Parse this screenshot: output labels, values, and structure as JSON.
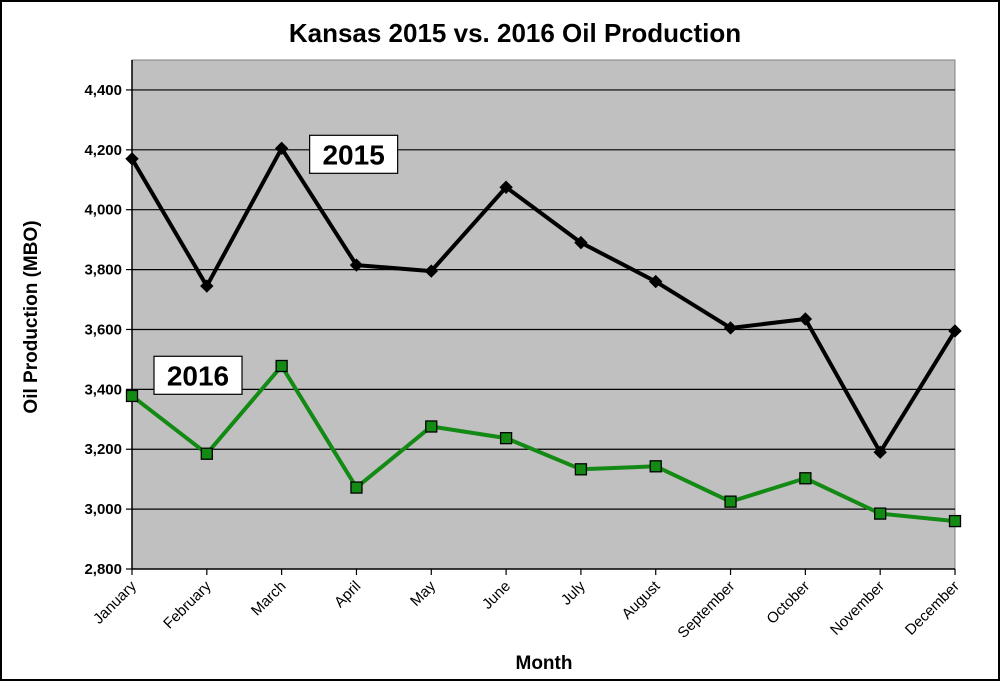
{
  "chart_data": {
    "type": "line",
    "title": "Kansas 2015 vs. 2016 Oil Production",
    "xlabel": "Month",
    "ylabel": "Oil Production (MBO)",
    "ylim": [
      2800,
      4500
    ],
    "yticks": [
      "2,800",
      "3,000",
      "3,200",
      "3,400",
      "3,600",
      "3,800",
      "4,000",
      "4,200",
      "4,400"
    ],
    "ytick_values": [
      2800,
      3000,
      3200,
      3400,
      3600,
      3800,
      4000,
      4200,
      4400
    ],
    "grid": true,
    "categories": [
      "January",
      "February",
      "March",
      "April",
      "May",
      "June",
      "July",
      "August",
      "September",
      "October",
      "November",
      "December"
    ],
    "series": [
      {
        "name": "2015",
        "color": "#000000",
        "marker": "diamond",
        "values": [
          4170,
          3745,
          4205,
          3815,
          3795,
          4075,
          3890,
          3760,
          3605,
          3635,
          3190,
          3595
        ]
      },
      {
        "name": "2016",
        "color": "#138a13",
        "marker": "square",
        "values": [
          3378,
          3185,
          3478,
          3072,
          3276,
          3237,
          3133,
          3143,
          3025,
          3103,
          2985,
          2960
        ]
      }
    ],
    "series_labels": [
      {
        "text": "2015",
        "anchor_category": "March",
        "anchor_value": 4185
      },
      {
        "text": "2016",
        "anchor_category": "January",
        "anchor_value": 3447
      }
    ],
    "colors": {
      "plot_background": "#c0c0c0",
      "gridline": "#000000"
    }
  }
}
